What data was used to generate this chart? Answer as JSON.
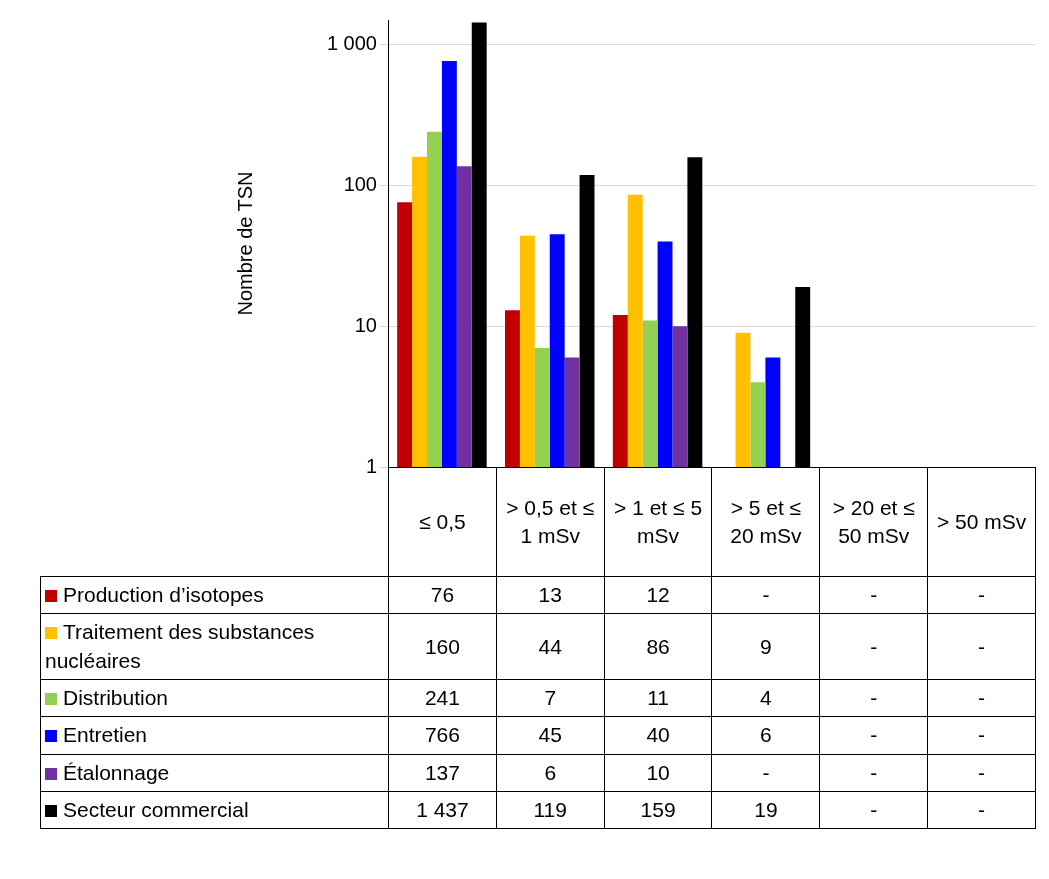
{
  "chart_data": {
    "type": "bar",
    "ylabel": "Nombre de TSN",
    "categories": [
      "≤ 0,5",
      "> 0,5 et ≤ 1 mSv",
      "> 1 et ≤ 5 mSv",
      "> 5 et ≤ 20 mSv",
      "> 20 et ≤ 50 mSv",
      "> 50 mSv"
    ],
    "series": [
      {
        "name": "Production d’isotopes",
        "color": "#c00000",
        "values": [
          76,
          13,
          12,
          null,
          null,
          null
        ],
        "value_labels": [
          "76",
          "13",
          "12",
          "-",
          "-",
          "-"
        ]
      },
      {
        "name": "Traitement des substances nucléaires",
        "color": "#ffc000",
        "values": [
          160,
          44,
          86,
          9,
          null,
          null
        ],
        "value_labels": [
          "160",
          "44",
          "86",
          "9",
          "-",
          "-"
        ]
      },
      {
        "name": "Distribution",
        "color": "#92d050",
        "values": [
          241,
          7,
          11,
          4,
          null,
          null
        ],
        "value_labels": [
          "241",
          "7",
          "11",
          "4",
          "-",
          "-"
        ]
      },
      {
        "name": "Entretien",
        "color": "#0000ff",
        "values": [
          766,
          45,
          40,
          6,
          null,
          null
        ],
        "value_labels": [
          "766",
          "45",
          "40",
          "6",
          "-",
          "-"
        ]
      },
      {
        "name": "Étalonnage",
        "color": "#7030a0",
        "values": [
          137,
          6,
          10,
          null,
          null,
          null
        ],
        "value_labels": [
          "137",
          "6",
          "10",
          "-",
          "-",
          "-"
        ]
      },
      {
        "name": "Secteur commercial",
        "color": "#000000",
        "values": [
          1437,
          119,
          159,
          19,
          null,
          null
        ],
        "value_labels": [
          "1 437",
          "119",
          "159",
          "19",
          "-",
          "-"
        ]
      }
    ],
    "log": "y",
    "ylim": [
      1,
      1500
    ],
    "yticks": [
      1,
      10,
      100,
      {
        "value": 1000,
        "label": "1 000"
      }
    ],
    "grid": "y",
    "legend": "bottom"
  }
}
